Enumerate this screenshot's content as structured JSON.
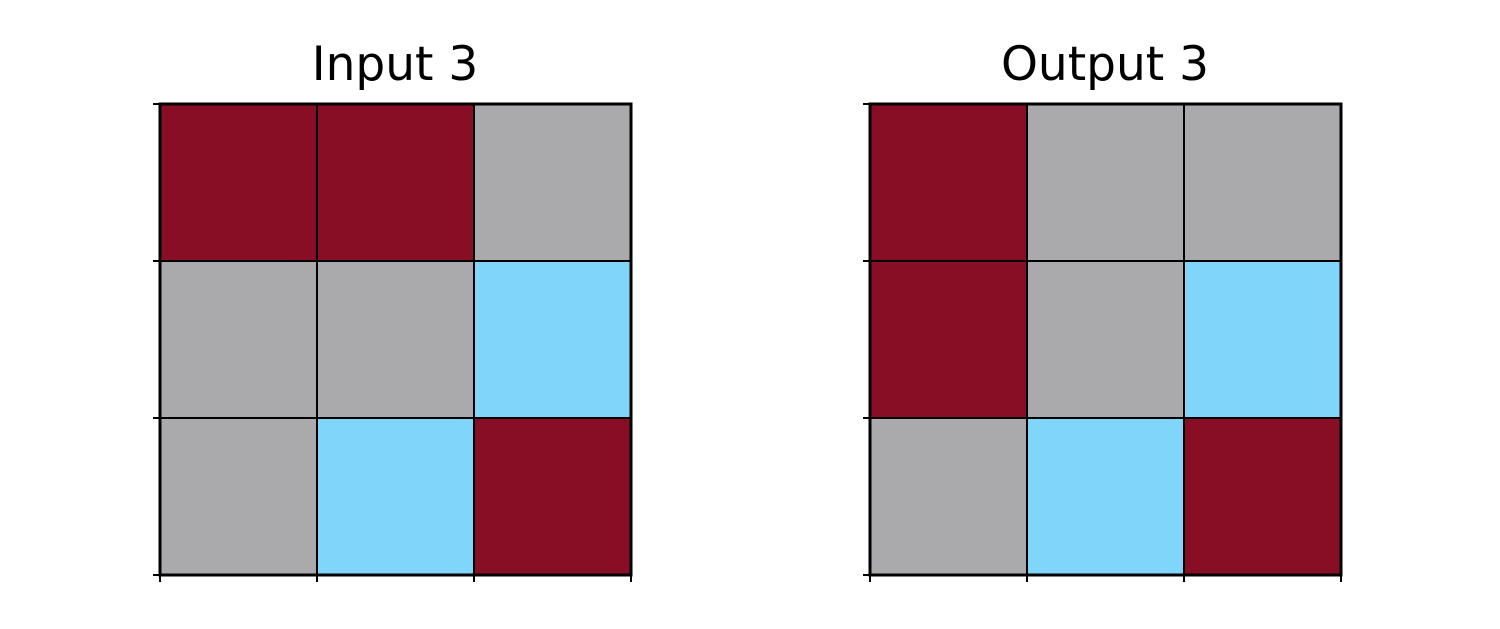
{
  "colors": {
    "0": "#880e26",
    "1": "#aaa9ac",
    "2": "#7fd5fa"
  },
  "panels": [
    {
      "title": "Input 3",
      "grid": [
        [
          0,
          0,
          1
        ],
        [
          1,
          1,
          2
        ],
        [
          1,
          2,
          0
        ]
      ]
    },
    {
      "title": "Output 3",
      "grid": [
        [
          0,
          1,
          1
        ],
        [
          0,
          1,
          2
        ],
        [
          1,
          2,
          0
        ]
      ]
    }
  ]
}
